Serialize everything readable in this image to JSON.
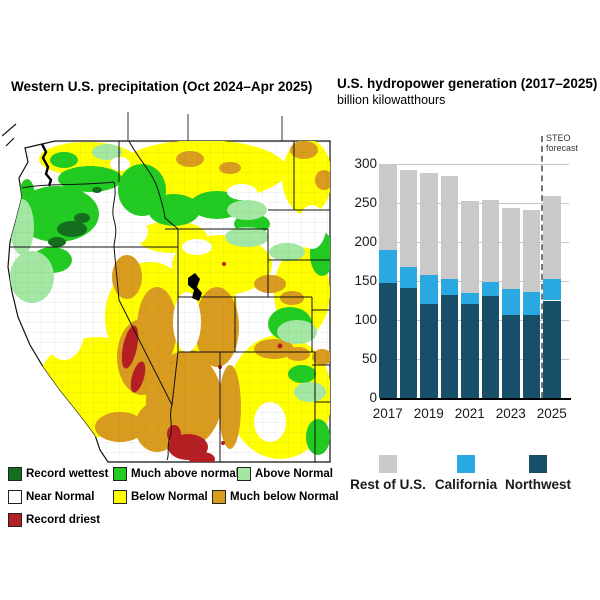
{
  "left_panel": {
    "title": "Western U.S. precipitation (Oct 2024–Apr 2025)",
    "legend": [
      {
        "key": "record_wettest",
        "label": "Record wettest"
      },
      {
        "key": "much_above_normal",
        "label": "Much above normal"
      },
      {
        "key": "above_normal",
        "label": "Above Normal"
      },
      {
        "key": "near_normal",
        "label": "Near Normal"
      },
      {
        "key": "below_normal",
        "label": "Below Normal"
      },
      {
        "key": "much_below_normal",
        "label": "Much below Normal"
      },
      {
        "key": "record_driest",
        "label": "Record driest"
      }
    ],
    "colors": {
      "record_wettest": "#146e1d",
      "much_above_normal": "#21cb21",
      "above_normal": "#a3e7a3",
      "near_normal": "#ffffff",
      "below_normal": "#ffff00",
      "much_below_normal": "#d99c1e",
      "record_driest": "#b51f24"
    }
  },
  "right_panel": {
    "title": "U.S. hydropower generation (2017–2025)",
    "subtitle": "billion kilowatthours",
    "forecast": {
      "line1": "STEO",
      "line2": "forecast"
    },
    "legend": [
      {
        "name": "Rest of U.S.",
        "color": "#c9c9c9"
      },
      {
        "name": "California",
        "color": "#29a8e2"
      },
      {
        "name": "Northwest",
        "color": "#174f68"
      }
    ]
  },
  "chart_data": {
    "type": "bar",
    "stacked": true,
    "title": "U.S. hydropower generation (2017–2025)",
    "ylabel": "billion kilowatthours",
    "categories": [
      "2017",
      "2018",
      "2019",
      "2020",
      "2021",
      "2022",
      "2023",
      "2024",
      "2025"
    ],
    "x_tick_labels": [
      "2017",
      "2019",
      "2021",
      "2023",
      "2025"
    ],
    "y_ticks": [
      0,
      50,
      100,
      150,
      200,
      250,
      300
    ],
    "ylim": [
      0,
      300
    ],
    "grid": true,
    "legend_position": "bottom",
    "series": [
      {
        "name": "Northwest",
        "color": "#174f68",
        "values": [
          147,
          141,
          121,
          132,
          120,
          131,
          107,
          106,
          125
        ]
      },
      {
        "name": "California",
        "color": "#29a8e2",
        "values": [
          43,
          27,
          37,
          21,
          14,
          18,
          33,
          30,
          28
        ]
      },
      {
        "name": "Rest of U.S.",
        "color": "#c9c9c9",
        "values": [
          110,
          124,
          130,
          132,
          118,
          105,
          104,
          105,
          106
        ]
      }
    ],
    "totals": [
      300,
      292,
      288,
      285,
      252,
      254,
      244,
      241,
      259
    ],
    "annotations": [
      {
        "text": "STEO forecast",
        "type": "dashed-vline",
        "between": [
          "2024",
          "2025"
        ]
      }
    ]
  }
}
